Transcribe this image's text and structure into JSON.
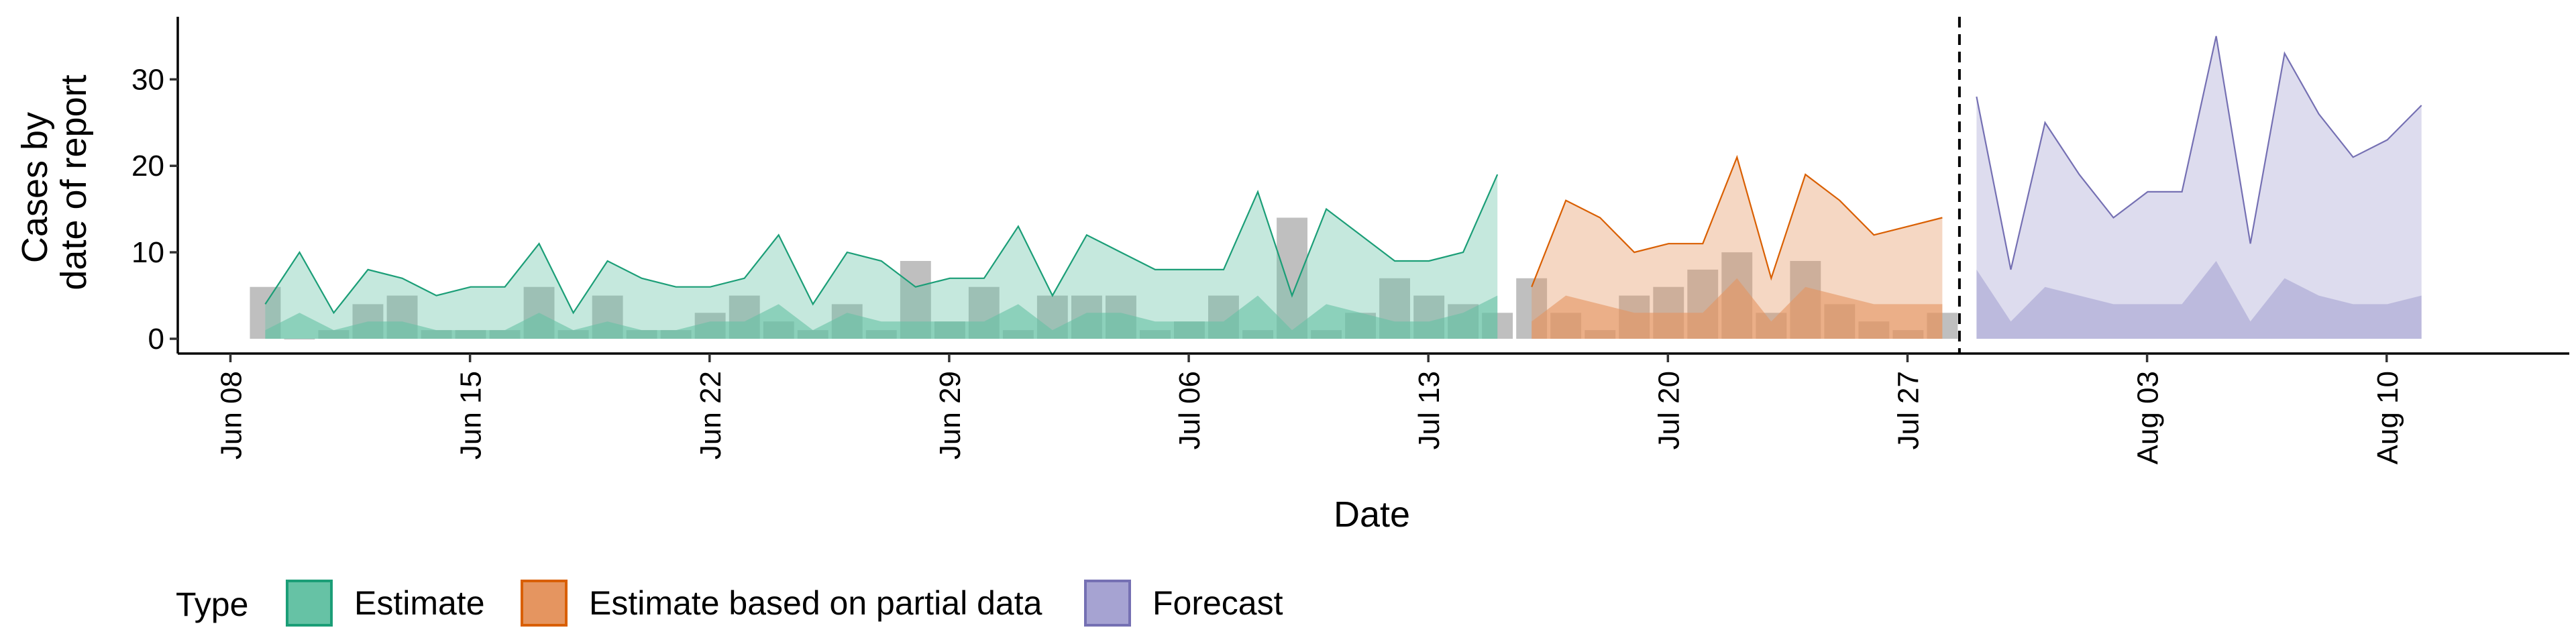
{
  "chart_data": {
    "type": "area",
    "title": "",
    "xlabel": "Date",
    "ylabel_lines": [
      "Cases by",
      "date of report"
    ],
    "x_ticks": [
      "Jun 08",
      "Jun 15",
      "Jun 22",
      "Jun 29",
      "Jul 06",
      "Jul 13",
      "Jul 20",
      "Jul 27",
      "Aug 03",
      "Aug 10"
    ],
    "y_ticks": [
      "0",
      "10",
      "20",
      "30"
    ],
    "ylim": [
      -2,
      37
    ],
    "xlim": [
      "2020-06-06",
      "2020-08-15"
    ],
    "grid": false,
    "legend": {
      "title": "Type",
      "position": "bottom",
      "entries": [
        {
          "label": "Estimate",
          "fill": "#66c2a5",
          "stroke": "#1b9e77"
        },
        {
          "label": "Estimate based on partial data",
          "fill": "#e59560",
          "stroke": "#d95f02"
        },
        {
          "label": "Forecast",
          "fill": "#a6a3d2",
          "stroke": "#7570b3"
        }
      ]
    },
    "forecast_date": "2020-07-29",
    "reported_cases": {
      "color": "#a9a9a9",
      "dates": [
        "2020-06-10",
        "2020-06-11",
        "2020-06-12",
        "2020-06-13",
        "2020-06-14",
        "2020-06-15",
        "2020-06-16",
        "2020-06-17",
        "2020-06-18",
        "2020-06-19",
        "2020-06-20",
        "2020-06-21",
        "2020-06-22",
        "2020-06-23",
        "2020-06-24",
        "2020-06-25",
        "2020-06-26",
        "2020-06-27",
        "2020-06-28",
        "2020-06-29",
        "2020-06-30",
        "2020-07-01",
        "2020-07-02",
        "2020-07-03",
        "2020-07-04",
        "2020-07-05",
        "2020-07-06",
        "2020-07-07",
        "2020-07-08",
        "2020-07-09",
        "2020-07-10",
        "2020-07-11",
        "2020-07-12",
        "2020-07-13",
        "2020-07-14",
        "2020-07-15",
        "2020-07-16",
        "2020-07-17",
        "2020-07-18",
        "2020-07-19",
        "2020-07-20",
        "2020-07-21",
        "2020-07-22",
        "2020-07-23",
        "2020-07-24",
        "2020-07-25",
        "2020-07-26",
        "2020-07-27",
        "2020-07-28",
        "2020-07-29"
      ],
      "values": [
        6,
        0,
        1,
        4,
        5,
        1,
        1,
        1,
        6,
        1,
        5,
        1,
        1,
        3,
        5,
        2,
        1,
        4,
        1,
        9,
        2,
        6,
        1,
        5,
        5,
        5,
        1,
        2,
        5,
        1,
        14,
        1,
        3,
        7,
        5,
        4,
        3,
        7,
        3,
        1,
        5,
        6,
        8,
        10,
        3,
        9,
        4,
        2,
        1,
        3
      ]
    },
    "series": [
      {
        "name": "Estimate",
        "fill": "#66c2a5",
        "stroke": "#1b9e77",
        "x": [
          "2020-06-10",
          "2020-06-11",
          "2020-06-12",
          "2020-06-13",
          "2020-06-14",
          "2020-06-15",
          "2020-06-16",
          "2020-06-17",
          "2020-06-18",
          "2020-06-19",
          "2020-06-20",
          "2020-06-21",
          "2020-06-22",
          "2020-06-23",
          "2020-06-24",
          "2020-06-25",
          "2020-06-26",
          "2020-06-27",
          "2020-06-28",
          "2020-06-29",
          "2020-06-30",
          "2020-07-01",
          "2020-07-02",
          "2020-07-03",
          "2020-07-04",
          "2020-07-05",
          "2020-07-06",
          "2020-07-07",
          "2020-07-08",
          "2020-07-09",
          "2020-07-10",
          "2020-07-11",
          "2020-07-12",
          "2020-07-13",
          "2020-07-14",
          "2020-07-15",
          "2020-07-16"
        ],
        "outer_lower": [
          0,
          0,
          0,
          0,
          0,
          0,
          0,
          0,
          0,
          0,
          0,
          0,
          0,
          0,
          0,
          0,
          0,
          0,
          0,
          0,
          0,
          0,
          0,
          0,
          0,
          0,
          0,
          0,
          0,
          0,
          0,
          0,
          0,
          0,
          0,
          0,
          0
        ],
        "outer_upper": [
          4,
          10,
          3,
          8,
          7,
          5,
          6,
          6,
          11,
          3,
          9,
          7,
          6,
          6,
          7,
          12,
          4,
          10,
          9,
          6,
          7,
          7,
          13,
          5,
          12,
          10,
          8,
          8,
          8,
          17,
          5,
          15,
          12,
          9,
          9,
          10,
          19
        ],
        "inner_lower": [
          0,
          0,
          0,
          0,
          0,
          0,
          0,
          0,
          0,
          0,
          0,
          0,
          0,
          0,
          0,
          0,
          0,
          0,
          0,
          0,
          0,
          0,
          0,
          0,
          0,
          0,
          0,
          0,
          0,
          0,
          0,
          0,
          0,
          0,
          0,
          0,
          0
        ],
        "inner_upper": [
          1,
          3,
          1,
          2,
          2,
          1,
          1,
          1,
          3,
          1,
          2,
          1,
          1,
          2,
          2,
          4,
          1,
          3,
          2,
          2,
          2,
          2,
          4,
          1,
          3,
          3,
          2,
          2,
          2,
          5,
          1,
          4,
          3,
          2,
          2,
          3,
          5
        ]
      },
      {
        "name": "Estimate based on partial data",
        "fill": "#e59560",
        "stroke": "#d95f02",
        "x": [
          "2020-07-17",
          "2020-07-18",
          "2020-07-19",
          "2020-07-20",
          "2020-07-21",
          "2020-07-22",
          "2020-07-23",
          "2020-07-24",
          "2020-07-25",
          "2020-07-26",
          "2020-07-27",
          "2020-07-28",
          "2020-07-29"
        ],
        "outer_lower": [
          0,
          0,
          0,
          0,
          0,
          0,
          0,
          0,
          0,
          0,
          0,
          0,
          0
        ],
        "outer_upper": [
          6,
          16,
          14,
          10,
          11,
          11,
          21,
          7,
          19,
          16,
          12,
          13,
          14
        ],
        "inner_lower": [
          0,
          0,
          0,
          0,
          0,
          0,
          0,
          0,
          0,
          0,
          0,
          0,
          0
        ],
        "inner_upper": [
          2,
          5,
          4,
          3,
          3,
          3,
          7,
          2,
          6,
          5,
          4,
          4,
          4
        ]
      },
      {
        "name": "Forecast",
        "fill": "#a6a3d2",
        "stroke": "#7570b3",
        "x": [
          "2020-07-30",
          "2020-07-31",
          "2020-08-01",
          "2020-08-02",
          "2020-08-03",
          "2020-08-04",
          "2020-08-05",
          "2020-08-06",
          "2020-08-07",
          "2020-08-08",
          "2020-08-09",
          "2020-08-10",
          "2020-08-11",
          "2020-08-12"
        ],
        "outer_lower": [
          0,
          0,
          0,
          0,
          0,
          0,
          0,
          0,
          0,
          0,
          0,
          0,
          0,
          0
        ],
        "outer_upper": [
          28,
          8,
          25,
          19,
          14,
          17,
          17,
          35,
          11,
          33,
          26,
          21,
          23,
          27
        ],
        "inner_lower": [
          0,
          0,
          0,
          0,
          0,
          0,
          0,
          0,
          0,
          0,
          0,
          0,
          0,
          0
        ],
        "inner_upper": [
          8,
          2,
          6,
          5,
          4,
          4,
          4,
          9,
          2,
          7,
          5,
          4,
          4,
          5
        ]
      }
    ]
  }
}
